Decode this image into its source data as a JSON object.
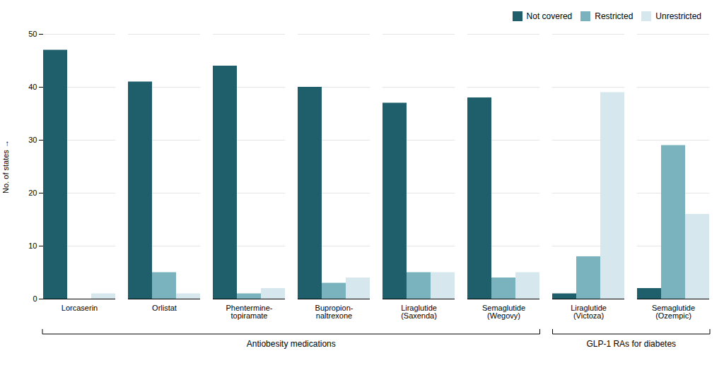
{
  "chart_data": {
    "type": "bar",
    "categories": [
      "Lorcaserin",
      "Orlistat",
      "Phentermine-\ntopiramate",
      "Bupropion-\nnaltrexone",
      "Liraglutide\n(Saxenda)",
      "Semaglutide\n(Wegovy)",
      "Liraglutide\n(Victoza)",
      "Semaglutide\n(Ozempic)"
    ],
    "series": [
      {
        "name": "Not covered",
        "color": "#1f5f6b",
        "values": [
          47,
          41,
          44,
          40,
          37,
          38,
          1,
          2
        ]
      },
      {
        "name": "Restricted",
        "color": "#7ab3be",
        "values": [
          0,
          5,
          1,
          3,
          5,
          4,
          8,
          29
        ]
      },
      {
        "name": "Unrestricted",
        "color": "#d6e8ed",
        "values": [
          1,
          1,
          2,
          4,
          5,
          5,
          39,
          16
        ]
      }
    ],
    "ylabel": "No. of states",
    "ylim": [
      0,
      50
    ],
    "yticks": [
      0,
      10,
      20,
      30,
      40,
      50
    ],
    "grid": true,
    "legend": "upper right",
    "annotations": [
      {
        "text": "Antiobesity medications",
        "from": "Lorcaserin",
        "to": "Semaglutide\n(Wegovy)"
      },
      {
        "text": "GLP-1 RAs for diabetes",
        "from": "Liraglutide\n(Victoza)",
        "to": "Semaglutide\n(Ozempic)"
      }
    ]
  }
}
